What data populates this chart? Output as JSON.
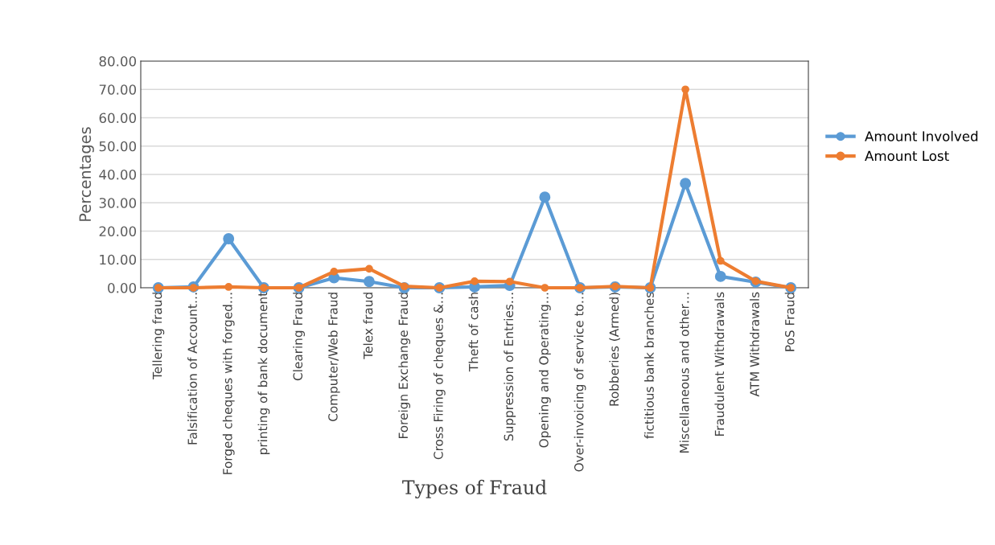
{
  "chart_data": {
    "type": "line",
    "xlabel": "Types of Fraud",
    "ylabel": "Percentages",
    "categories": [
      "Tellering fraud",
      "Falsification of Account…",
      "Forged cheques with forged…",
      "printing of bank document",
      "Clearing Fraud",
      "Computer/Web Fraud",
      "Telex fraud",
      "Foreign Exchange Fraud",
      "Cross Firing of cheques &…",
      "Theft of cash",
      "Suppression of Entries…",
      "Opening and Operating…",
      "Over-invoicing of service to…",
      "Robberies (Armed)",
      "fictitious bank branches",
      "Miscellaneous and other…",
      "Fraudulent Withdrawals",
      "ATM Withdrawals",
      "PoS Fraud"
    ],
    "series": [
      {
        "name": "Amount Involved",
        "color": "#5b9bd5",
        "values": [
          0,
          0.3,
          17.3,
          0,
          0,
          3.5,
          2.2,
          0,
          0,
          0.3,
          0.8,
          32.0,
          0,
          0.3,
          0,
          36.8,
          4.0,
          2.0,
          0
        ]
      },
      {
        "name": "Amount Lost",
        "color": "#ed7d31",
        "values": [
          0,
          0,
          0.3,
          0,
          0,
          5.7,
          6.7,
          0.5,
          0,
          2.3,
          2.2,
          0,
          0,
          0.5,
          0,
          70.0,
          9.5,
          2.3,
          0
        ]
      }
    ],
    "ylim": [
      0,
      80
    ],
    "yticks": [
      {
        "value": 0,
        "label": "0.00"
      },
      {
        "value": 10,
        "label": "10.00"
      },
      {
        "value": 20,
        "label": "20.00"
      },
      {
        "value": 30,
        "label": "30.00"
      },
      {
        "value": 40,
        "label": "40.00"
      },
      {
        "value": 50,
        "label": "50.00"
      },
      {
        "value": 60,
        "label": "60.00"
      },
      {
        "value": 70,
        "label": "70.00"
      },
      {
        "value": 80,
        "label": "80.00"
      }
    ],
    "grid": "y",
    "legend": "right",
    "marker": "circle",
    "line_style": "solid"
  }
}
